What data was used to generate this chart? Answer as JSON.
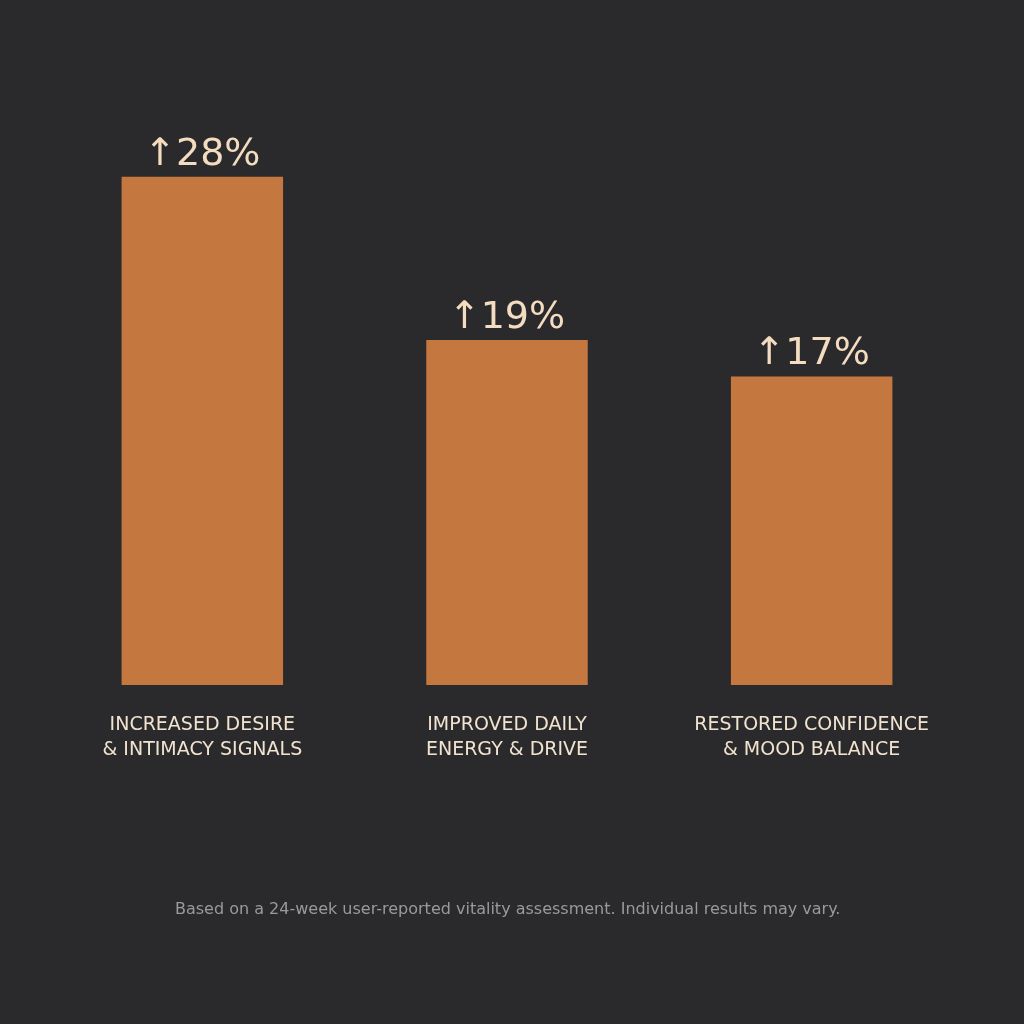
{
  "chart_data": {
    "type": "bar",
    "categories": [
      "INCREASED DESIRE\n& INTIMACY SIGNALS",
      "IMPROVED DAILY\nENERGY & DRIVE",
      "RESTORED CONFIDENCE\n& MOOD BALANCE"
    ],
    "values": [
      28,
      19,
      17
    ],
    "value_labels": [
      "↑28%",
      "↑19%",
      "↑17%"
    ],
    "color": "#c4773f",
    "annotations": [
      "Based on a 24-week user-reported vitality assessment. Individual results may vary."
    ]
  }
}
